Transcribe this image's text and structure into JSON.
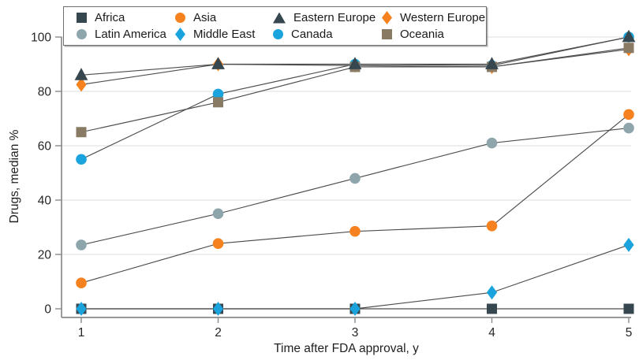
{
  "chart_data": {
    "type": "line",
    "title": "",
    "xlabel": "Time after FDA approval, y",
    "ylabel": "Drugs, median %",
    "x": [
      1,
      2,
      3,
      4,
      5
    ],
    "xticks": [
      1,
      2,
      3,
      4,
      5
    ],
    "yticks": [
      0,
      20,
      40,
      60,
      80,
      100
    ],
    "ylim": [
      0,
      100
    ],
    "grid": "horizontal-light-gray",
    "line_color": "#4d4d4d",
    "legend_position": "top-inside-box",
    "series": [
      {
        "name": "Africa",
        "marker": "square",
        "color": "#36474F",
        "values": [
          0,
          0,
          0,
          0,
          0
        ]
      },
      {
        "name": "Latin America",
        "marker": "circle",
        "color": "#8EA5AC",
        "values": [
          23.5,
          35,
          48,
          61,
          66.5
        ]
      },
      {
        "name": "Asia",
        "marker": "circle",
        "color": "#F5821E",
        "values": [
          9.5,
          24,
          28.5,
          30.5,
          71.5
        ]
      },
      {
        "name": "Middle East",
        "marker": "diamond",
        "color": "#1AA3DC",
        "values": [
          0,
          0,
          0,
          6,
          23.5
        ]
      },
      {
        "name": "Canada",
        "marker": "circle",
        "color": "#1AA3DC",
        "values": [
          55,
          79,
          90,
          89.5,
          100
        ]
      },
      {
        "name": "Western Europe",
        "marker": "diamond",
        "color": "#F5821E",
        "values": [
          82.5,
          90,
          89.5,
          89,
          95.5
        ]
      },
      {
        "name": "Oceania",
        "marker": "square",
        "color": "#897A64",
        "values": [
          65,
          76,
          89,
          89,
          96
        ]
      },
      {
        "name": "Eastern Europe",
        "marker": "triangle",
        "color": "#36474F",
        "values": [
          86,
          90,
          90,
          90,
          100
        ]
      }
    ]
  },
  "legend": {
    "items": [
      {
        "label": "Africa",
        "marker": "square",
        "color": "#36474F"
      },
      {
        "label": "Asia",
        "marker": "circle",
        "color": "#F5821E"
      },
      {
        "label": "Eastern Europe",
        "marker": "triangle",
        "color": "#36474F"
      },
      {
        "label": "Western Europe",
        "marker": "diamond",
        "color": "#F5821E"
      },
      {
        "label": "Latin America",
        "marker": "circle",
        "color": "#8EA5AC"
      },
      {
        "label": "Middle East",
        "marker": "diamond",
        "color": "#1AA3DC"
      },
      {
        "label": "Canada",
        "marker": "circle",
        "color": "#1AA3DC"
      },
      {
        "label": "Oceania",
        "marker": "square",
        "color": "#897A64"
      }
    ]
  }
}
